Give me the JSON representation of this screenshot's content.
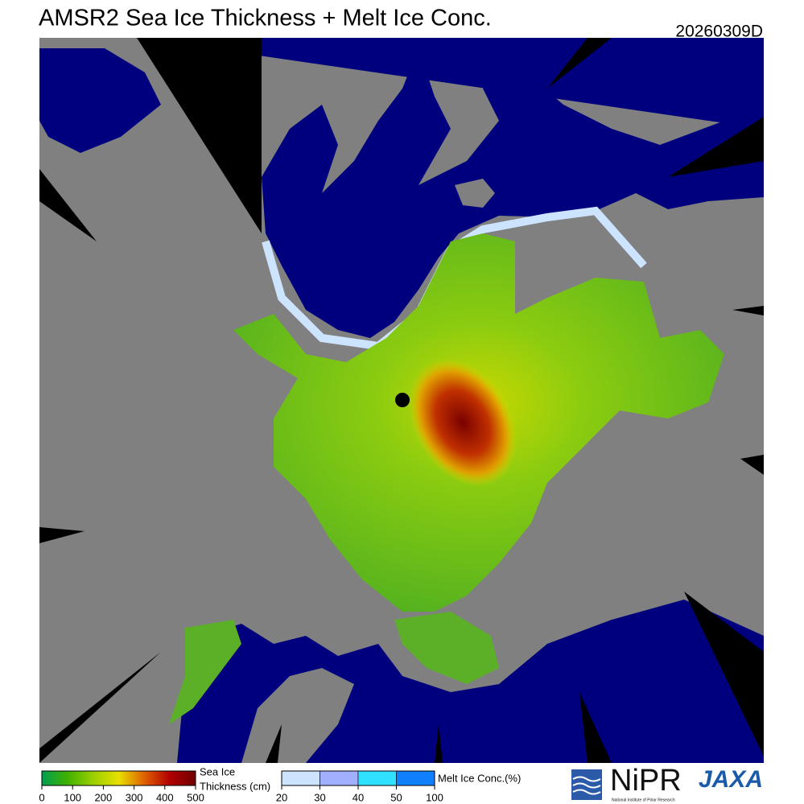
{
  "title": "AMSR2 Sea Ice Thickness + Melt Ice Conc.",
  "date": "20260309D",
  "legend": {
    "thickness": {
      "label": [
        "Sea Ice",
        "Thickness (cm)"
      ],
      "ticks": [
        0,
        100,
        200,
        300,
        400,
        500
      ],
      "colors": [
        "#00a050",
        "#40b000",
        "#9ad000",
        "#e8e000",
        "#e06000",
        "#b00000",
        "#700000"
      ]
    },
    "melt": {
      "label": "Melt Ice Conc.(%)",
      "ticks": [
        20,
        30,
        40,
        50,
        100
      ],
      "colors": [
        "#cce4ff",
        "#a0b0ff",
        "#30e0ff",
        "#1080ff"
      ]
    }
  },
  "logos": {
    "nipr": "NiPR",
    "nipr_sub": "National Institute of Polar Research",
    "jaxa": "JAXA"
  }
}
